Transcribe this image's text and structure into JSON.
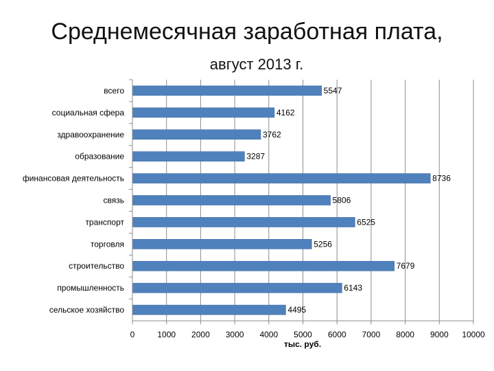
{
  "chart_data": {
    "type": "bar",
    "orientation": "horizontal",
    "title": "Среднемесячная заработная плата,",
    "subtitle": "август 2013 г.",
    "xlabel": "тыс. руб.",
    "ylabel": "",
    "xlim": [
      0,
      10000
    ],
    "xticks": [
      "0",
      "1000",
      "2000",
      "3000",
      "4000",
      "5000",
      "6000",
      "7000",
      "8000",
      "9000",
      "10000"
    ],
    "grid": true,
    "legend": "none",
    "bar_color": "#4F81BD",
    "categories": [
      "всего",
      "социальная сфера",
      "здравоохранение",
      "образование",
      "финансовая деятельность",
      "связь",
      "транспорт",
      "торговля",
      "строительство",
      "промышленность",
      "сельское хозяйство"
    ],
    "values": [
      5547,
      4162,
      3762,
      3287,
      8736,
      5806,
      6525,
      5256,
      7679,
      6143,
      4495
    ]
  }
}
